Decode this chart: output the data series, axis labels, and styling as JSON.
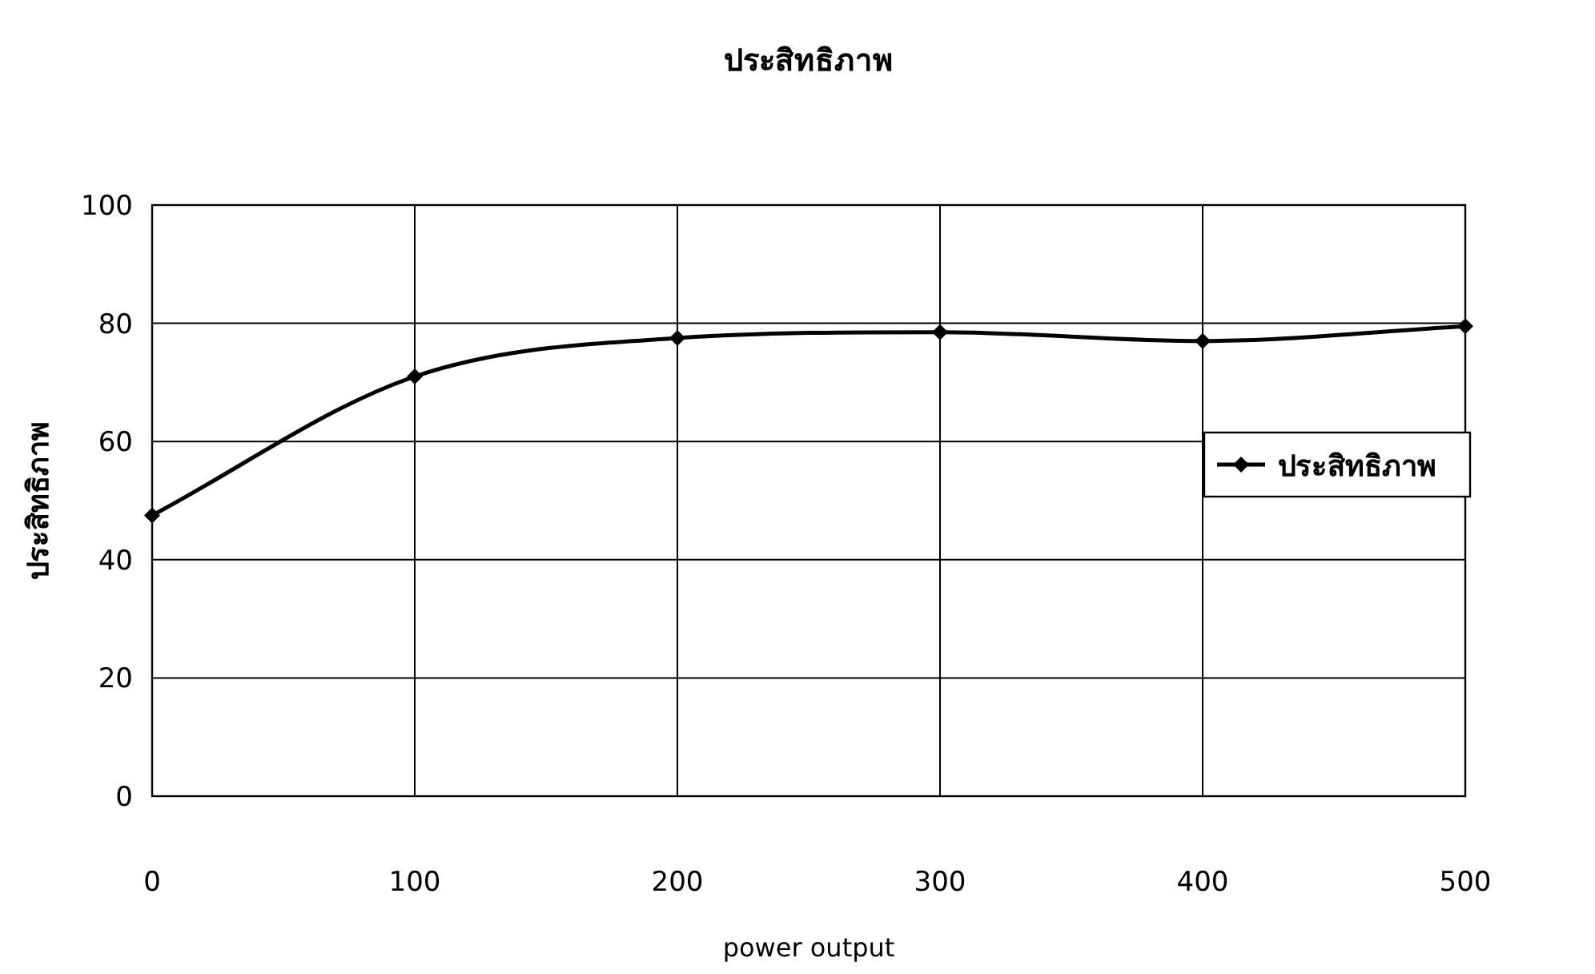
{
  "chart_data": {
    "type": "line",
    "title": "ประสิทธิภาพ",
    "xlabel": "power output",
    "ylabel": "ประสิทธิภาพ",
    "x": [
      0,
      100,
      200,
      300,
      400,
      500
    ],
    "series": [
      {
        "name": "ประสิทธิภาพ",
        "color": "#000000",
        "values": [
          47.5,
          71,
          77.5,
          78.5,
          77,
          79.5
        ]
      }
    ],
    "xlim": [
      0,
      500
    ],
    "ylim": [
      0,
      100
    ],
    "xticks": [
      0,
      100,
      200,
      300,
      400,
      500
    ],
    "yticks": [
      0,
      20,
      40,
      60,
      80,
      100
    ],
    "grid": true,
    "legend": "right",
    "marker": "diamond",
    "line_style": "solid"
  }
}
